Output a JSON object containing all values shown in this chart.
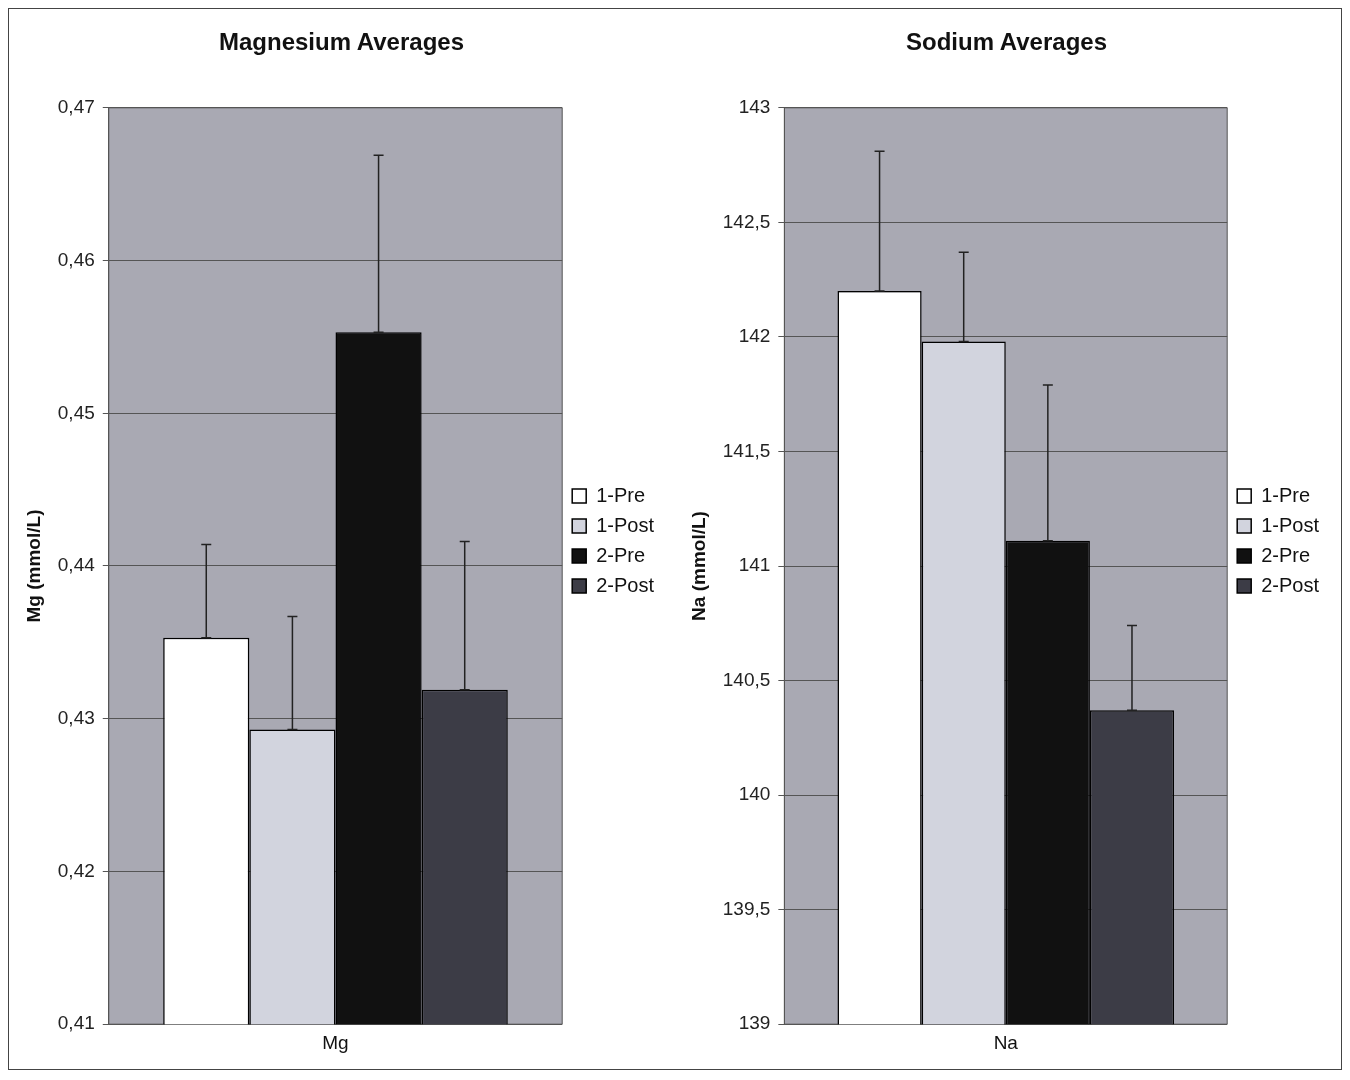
{
  "chart_data": [
    {
      "type": "bar",
      "title": "Magnesium Averages",
      "ylabel": "Mg (mmol/L)",
      "categories": [
        "Mg"
      ],
      "series": [
        {
          "name": "1-Pre",
          "color": "#ffffff",
          "values": [
            0.4353
          ],
          "errors": [
            [
              0.4353,
              0.4414
            ]
          ]
        },
        {
          "name": "1-Post",
          "color": "#d2d4de",
          "values": [
            0.4293
          ],
          "errors": [
            [
              0.4293,
              0.4367
            ]
          ]
        },
        {
          "name": "2-Pre",
          "color": "#111111",
          "values": [
            0.4553
          ],
          "errors": [
            [
              0.4553,
              0.4669
            ]
          ]
        },
        {
          "name": "2-Post",
          "color": "#3c3c46",
          "values": [
            0.4319
          ],
          "errors": [
            [
              0.4319,
              0.4416
            ]
          ]
        }
      ],
      "ylim": [
        0.41,
        0.47
      ],
      "yticks": [
        {
          "value": 0.41,
          "label": "0,41"
        },
        {
          "value": 0.42,
          "label": "0,42"
        },
        {
          "value": 0.43,
          "label": "0,43"
        },
        {
          "value": 0.44,
          "label": "0,44"
        },
        {
          "value": 0.45,
          "label": "0,45"
        },
        {
          "value": 0.46,
          "label": "0,46"
        },
        {
          "value": 0.47,
          "label": "0,47"
        }
      ],
      "grid": "y",
      "legend": "right"
    },
    {
      "type": "bar",
      "title": "Sodium Averages",
      "ylabel": "Na (mmol/L)",
      "categories": [
        "Na"
      ],
      "series": [
        {
          "name": "1-Pre",
          "color": "#ffffff",
          "values": [
            142.2
          ],
          "errors": [
            [
              142.2,
              142.81
            ]
          ]
        },
        {
          "name": "1-Post",
          "color": "#d2d4de",
          "values": [
            141.98
          ],
          "errors": [
            [
              141.98,
              142.37
            ]
          ]
        },
        {
          "name": "2-Pre",
          "color": "#111111",
          "values": [
            141.11
          ],
          "errors": [
            [
              141.11,
              141.79
            ]
          ]
        },
        {
          "name": "2-Post",
          "color": "#3c3c46",
          "values": [
            140.37
          ],
          "errors": [
            [
              140.37,
              140.74
            ]
          ]
        }
      ],
      "ylim": [
        139,
        143
      ],
      "yticks": [
        139,
        {
          "value": 139.5,
          "label": "139,5"
        },
        140,
        {
          "value": 140.5,
          "label": "140,5"
        },
        141,
        {
          "value": 141.5,
          "label": "141,5"
        },
        142,
        {
          "value": 142.5,
          "label": "142,5"
        },
        143
      ],
      "grid": "y",
      "legend": "right"
    }
  ]
}
